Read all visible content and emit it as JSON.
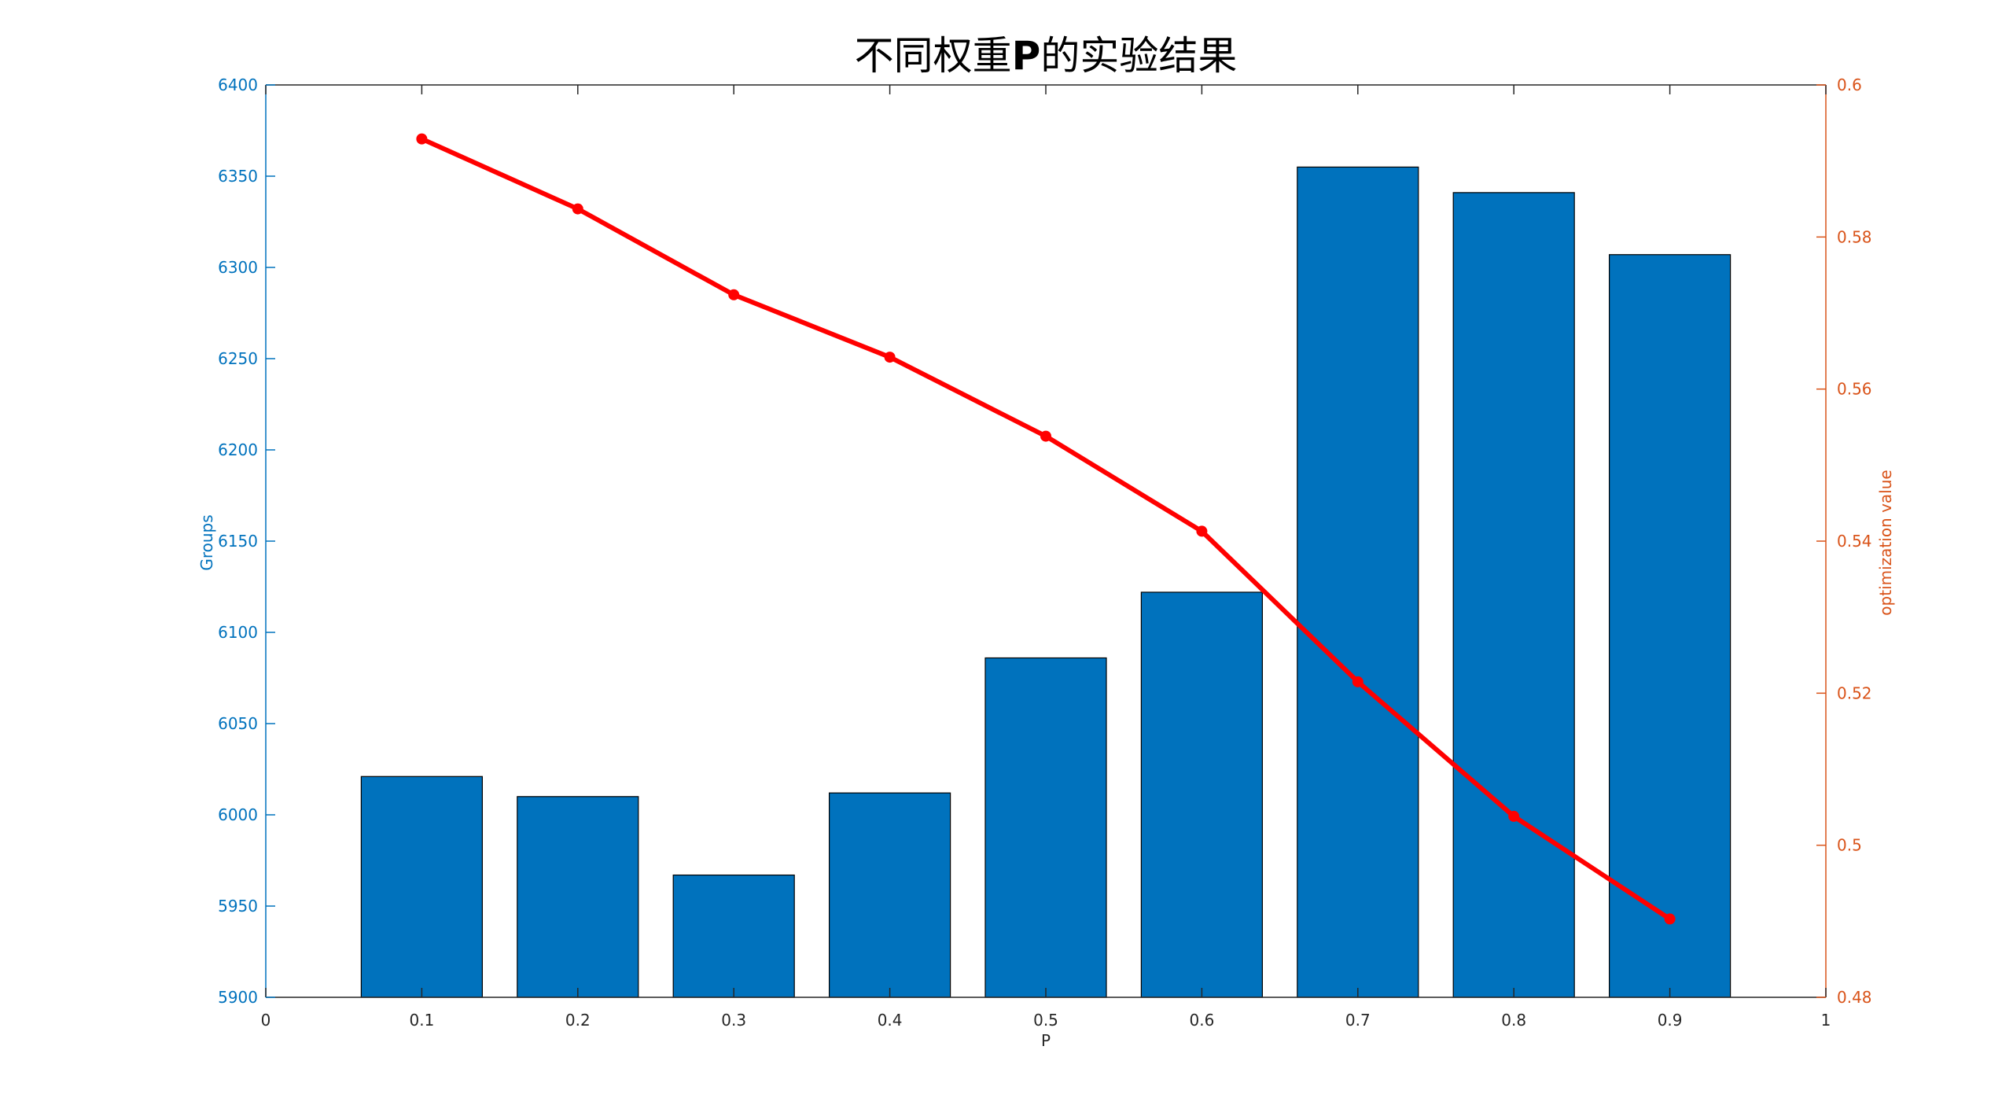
{
  "chart_data": {
    "type": "bar",
    "title_prefix": "不同权重",
    "title_bold": "P",
    "title_suffix": "的实验结果",
    "xlabel": "P",
    "ylabel_left": "Groups",
    "ylabel_right": "optimization value",
    "xlim": [
      0,
      1
    ],
    "ylim_left": [
      5900,
      6400
    ],
    "ylim_right": [
      0.48,
      0.6
    ],
    "xticks": [
      "0",
      "0.1",
      "0.2",
      "0.3",
      "0.4",
      "0.5",
      "0.6",
      "0.7",
      "0.8",
      "0.9",
      "1"
    ],
    "yticks_left": [
      "5900",
      "5950",
      "6000",
      "6050",
      "6100",
      "6150",
      "6200",
      "6250",
      "6300",
      "6350",
      "6400"
    ],
    "yticks_right": [
      "0.48",
      "0.5",
      "0.52",
      "0.54",
      "0.56",
      "0.58",
      "0.6"
    ],
    "categories": [
      0.1,
      0.2,
      0.3,
      0.4,
      0.5,
      0.6,
      0.7,
      0.8,
      0.9
    ],
    "series": [
      {
        "kind": "bar",
        "axis": "left",
        "color": "#0072BD",
        "values": [
          6021,
          6010,
          5967,
          6012,
          6086,
          6122,
          6355,
          6341,
          6307
        ]
      },
      {
        "kind": "line",
        "axis": "right",
        "color": "#FF0000",
        "values": [
          0.5929,
          0.5837,
          0.5724,
          0.5642,
          0.5538,
          0.5413,
          0.5215,
          0.5038,
          0.4903
        ]
      }
    ],
    "grid": false,
    "colors": {
      "left_axis": "#0072BD",
      "right_axis": "#D95319",
      "frame": "#262626"
    }
  }
}
